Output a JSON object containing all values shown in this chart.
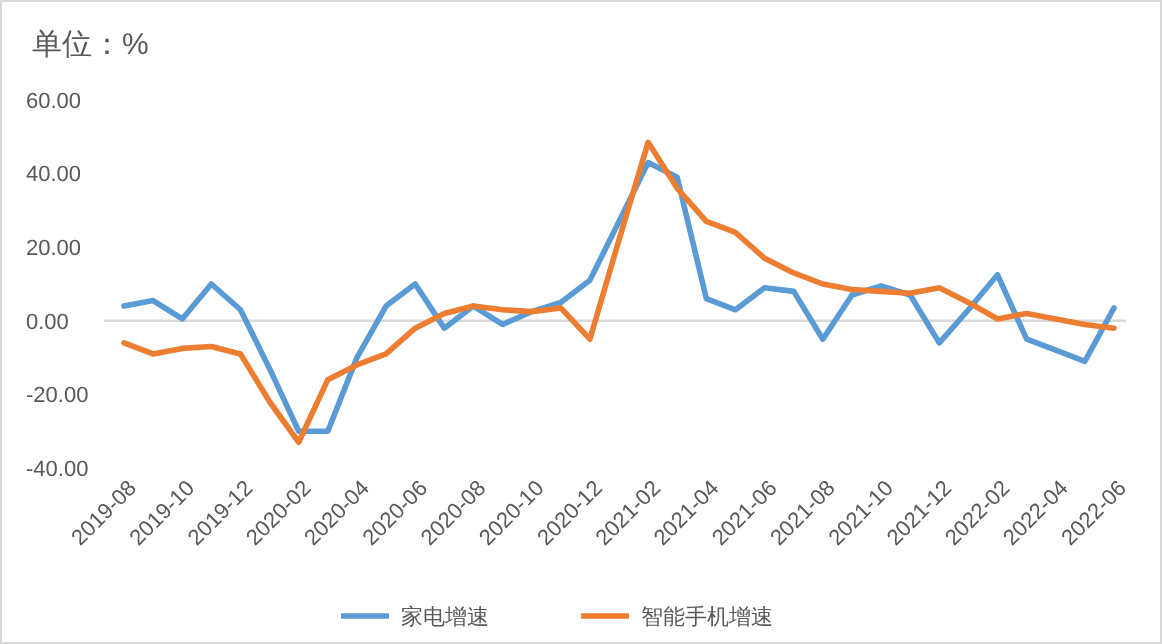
{
  "chart_data": {
    "type": "line",
    "title": "单位：%",
    "categories": [
      "2019-08",
      null,
      "2019-10",
      null,
      "2019-12",
      null,
      "2020-02",
      null,
      "2020-04",
      null,
      "2020-06",
      null,
      "2020-08",
      null,
      "2020-10",
      null,
      "2020-12",
      null,
      "2021-02",
      null,
      "2021-04",
      null,
      "2021-06",
      null,
      "2021-08",
      null,
      "2021-10",
      null,
      "2021-12",
      null,
      "2022-02",
      null,
      "2022-04",
      null,
      "2022-06"
    ],
    "series": [
      {
        "name": "家电增速",
        "color": "#5b9bd5",
        "values": [
          4,
          5.5,
          0.5,
          10,
          3,
          -13,
          -30,
          -30,
          -10,
          4,
          10,
          -2,
          4,
          -1,
          2.5,
          5,
          11,
          27,
          43,
          39,
          6,
          3,
          9,
          8,
          -5,
          7,
          9.5,
          7,
          -6,
          3,
          12.5,
          -5,
          -8,
          -11,
          3.5
        ]
      },
      {
        "name": "智能手机增速",
        "color": "#ed7d31",
        "values": [
          -6,
          -9,
          -7.5,
          -7,
          -9,
          -22,
          -33,
          -16,
          -12,
          -9,
          -2,
          2,
          4,
          3,
          2.5,
          3.5,
          -5,
          22,
          48.5,
          36,
          27,
          24,
          17,
          13,
          10,
          8.5,
          8,
          7.5,
          9,
          5,
          0.5,
          2,
          0.5,
          -1,
          -2
        ]
      }
    ],
    "ylim": [
      -40,
      60
    ],
    "yticks": [
      {
        "value": -40,
        "label": "-40.00"
      },
      {
        "value": -20,
        "label": "-20.00"
      },
      {
        "value": 0,
        "label": "0.00"
      },
      {
        "value": 20,
        "label": "20.00"
      },
      {
        "value": 40,
        "label": "40.00"
      },
      {
        "value": 60,
        "label": "60.00"
      }
    ],
    "legend": "bottom"
  }
}
